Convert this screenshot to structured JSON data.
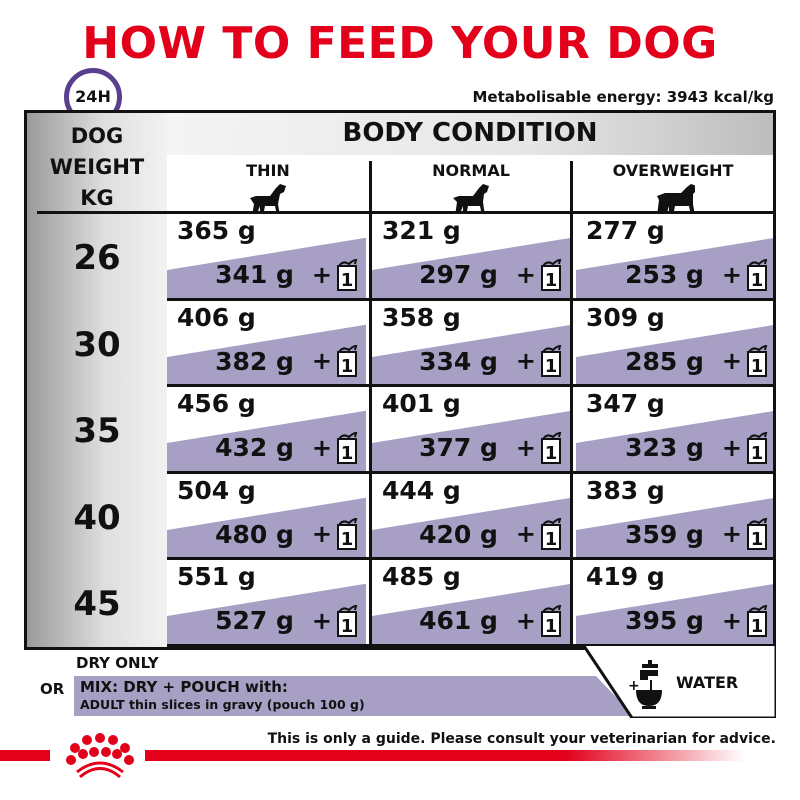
{
  "header": {
    "title": "HOW TO FEED YOUR DOG",
    "clock_label": "24H",
    "energy": "Metabolisable energy: 3943 kcal/kg"
  },
  "table": {
    "weight_header": [
      "DOG",
      "WEIGHT",
      "KG"
    ],
    "body_condition": "BODY CONDITION",
    "columns": [
      {
        "label": "THIN",
        "icon": "thin-dog-icon"
      },
      {
        "label": "NORMAL",
        "icon": "normal-dog-icon"
      },
      {
        "label": "OVERWEIGHT",
        "icon": "overweight-dog-icon"
      }
    ],
    "rows": [
      {
        "kg": "26",
        "cells": [
          {
            "dry": "365 g",
            "mix": "341 g"
          },
          {
            "dry": "321 g",
            "mix": "297 g"
          },
          {
            "dry": "277 g",
            "mix": "253 g"
          }
        ]
      },
      {
        "kg": "30",
        "cells": [
          {
            "dry": "406 g",
            "mix": "382 g"
          },
          {
            "dry": "358 g",
            "mix": "334 g"
          },
          {
            "dry": "309 g",
            "mix": "285 g"
          }
        ]
      },
      {
        "kg": "35",
        "cells": [
          {
            "dry": "456 g",
            "mix": "432 g"
          },
          {
            "dry": "401 g",
            "mix": "377 g"
          },
          {
            "dry": "347 g",
            "mix": "323 g"
          }
        ]
      },
      {
        "kg": "40",
        "cells": [
          {
            "dry": "504 g",
            "mix": "480 g"
          },
          {
            "dry": "444 g",
            "mix": "420 g"
          },
          {
            "dry": "383 g",
            "mix": "359 g"
          }
        ]
      },
      {
        "kg": "45",
        "cells": [
          {
            "dry": "551 g",
            "mix": "527 g"
          },
          {
            "dry": "485 g",
            "mix": "461 g"
          },
          {
            "dry": "419 g",
            "mix": "395 g"
          }
        ]
      }
    ],
    "plus": "+",
    "pouch_count": "1"
  },
  "legend": {
    "dry_only": "DRY ONLY",
    "or": "OR",
    "mix_line1": "MIX: DRY + POUCH with:",
    "mix_line2": "ADULT thin slices in gravy (pouch 100 g)",
    "water_plus": "+",
    "water": "WATER"
  },
  "footer": {
    "note": "This is only a guide. Please consult your veterinarian for advice."
  },
  "colors": {
    "brand_red": "#e2001a",
    "lavender": "#a79fc4",
    "clock_purple": "#5b3f8f"
  }
}
